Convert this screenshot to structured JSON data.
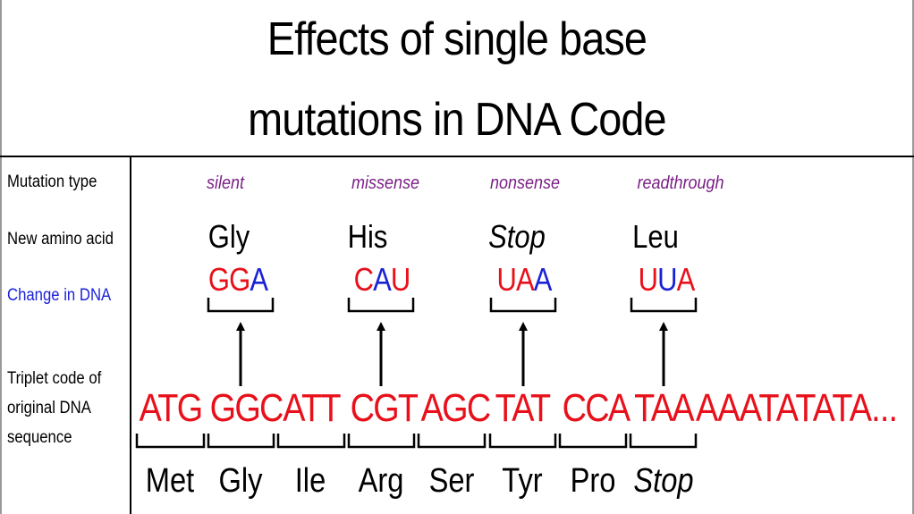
{
  "title": {
    "line1": "Effects of single base",
    "line2": "mutations in DNA Code"
  },
  "row_labels": {
    "mutation_type": "Mutation type",
    "new_amino_acid": "New amino acid",
    "change_in_dna": "Change in DNA",
    "triplet_line1": "Triplet code of",
    "triplet_line2": "original DNA",
    "triplet_line3": "sequence"
  },
  "colors": {
    "red": "#e8101a",
    "blue": "#1a22d6",
    "purple": "#7a1f86"
  },
  "mutations": [
    {
      "type": "silent",
      "amino_acid": "Gly",
      "codon": [
        {
          "letter": "G",
          "color": "red"
        },
        {
          "letter": "G",
          "color": "red"
        },
        {
          "letter": "A",
          "color": "blue"
        }
      ]
    },
    {
      "type": "missense",
      "amino_acid": "His",
      "codon": [
        {
          "letter": "C",
          "color": "red"
        },
        {
          "letter": "A",
          "color": "blue"
        },
        {
          "letter": "U",
          "color": "red"
        }
      ]
    },
    {
      "type": "nonsense",
      "amino_acid": "Stop",
      "codon": [
        {
          "letter": "U",
          "color": "red"
        },
        {
          "letter": "A",
          "color": "red"
        },
        {
          "letter": "A",
          "color": "blue"
        }
      ]
    },
    {
      "type": "readthrough",
      "amino_acid": "Leu",
      "codon": [
        {
          "letter": "U",
          "color": "red"
        },
        {
          "letter": "U",
          "color": "blue"
        },
        {
          "letter": "A",
          "color": "red"
        }
      ]
    }
  ],
  "sequence": {
    "codons": [
      "ATG",
      "GGC",
      "ATT",
      "CGT",
      "AGC",
      "TAT",
      "CCA",
      "TAA"
    ],
    "tail": "AAATATATA...",
    "amino_acids": [
      "Met",
      "Gly",
      "Ile",
      "Arg",
      "Ser",
      "Tyr",
      "Pro",
      "Stop"
    ]
  }
}
